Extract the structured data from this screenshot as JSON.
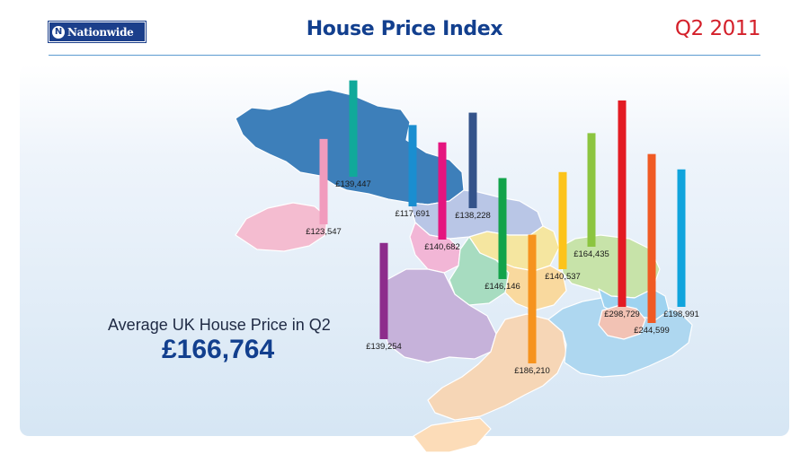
{
  "header": {
    "brand": "Nationwide",
    "title": "House Price Index",
    "period": "Q2 2011"
  },
  "summary": {
    "label": "Average UK House Price in Q2",
    "value": "£166,764"
  },
  "chart_data": {
    "type": "bar",
    "title": "House Price Index",
    "subtitle": "Q2 2011",
    "unit": "£",
    "bars": [
      {
        "label": "£123,547",
        "value": 123547,
        "color": "#f19bbd"
      },
      {
        "label": "£139,447",
        "value": 139447,
        "color": "#10a99a"
      },
      {
        "label": "£117,691",
        "value": 117691,
        "color": "#1a8ed0"
      },
      {
        "label": "£140,682",
        "value": 140682,
        "color": "#e5157f"
      },
      {
        "label": "£138,228",
        "value": 138228,
        "color": "#34538a"
      },
      {
        "label": "£146,146",
        "value": 146146,
        "color": "#12a34a"
      },
      {
        "label": "£186,210",
        "value": 186210,
        "color": "#f6931e"
      },
      {
        "label": "£140,537",
        "value": 140537,
        "color": "#fcc31b"
      },
      {
        "label": "£164,435",
        "value": 164435,
        "color": "#8cc540"
      },
      {
        "label": "£298,729",
        "value": 298729,
        "color": "#e31b23"
      },
      {
        "label": "£244,599",
        "value": 244599,
        "color": "#f05a24"
      },
      {
        "label": "£198,991",
        "value": 198991,
        "color": "#10a4dd"
      },
      {
        "label": "£139,254",
        "value": 139254,
        "color": "#8d2c8c"
      }
    ]
  }
}
